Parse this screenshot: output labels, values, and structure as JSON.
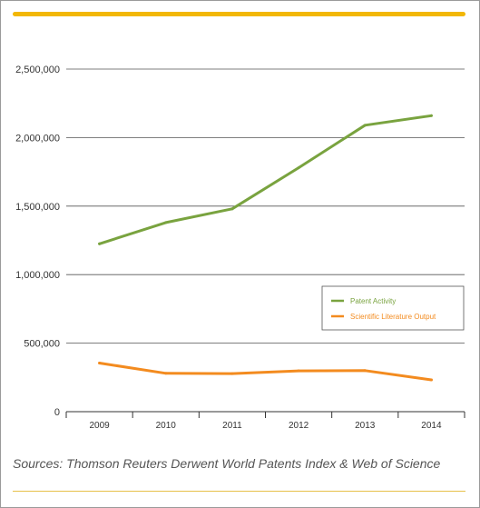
{
  "chart_data": {
    "type": "line",
    "x": [
      "2009",
      "2010",
      "2011",
      "2012",
      "2013",
      "2014"
    ],
    "series": [
      {
        "name": "Patent Activity",
        "color": "#79a33f",
        "values": [
          1225000,
          1380000,
          1480000,
          1780000,
          2090000,
          2160000
        ]
      },
      {
        "name": "Scientific Literature Output",
        "color": "#f38b1f",
        "values": [
          355000,
          280000,
          278000,
          298000,
          300000,
          232000
        ]
      }
    ],
    "ylim": [
      0,
      2500000
    ],
    "yticks": [
      0,
      500000,
      1000000,
      1500000,
      2000000,
      2500000
    ],
    "ytick_labels": [
      "0",
      "500,000",
      "1,000,000",
      "1,500,000",
      "2,000,000",
      "2,500,000"
    ],
    "grid": true,
    "legend_position": "right"
  },
  "source_text": "Sources: Thomson Reuters Derwent World Patents Index & Web of Science",
  "colors": {
    "accent_rule": "#f2b705",
    "gridline": "#555555"
  }
}
